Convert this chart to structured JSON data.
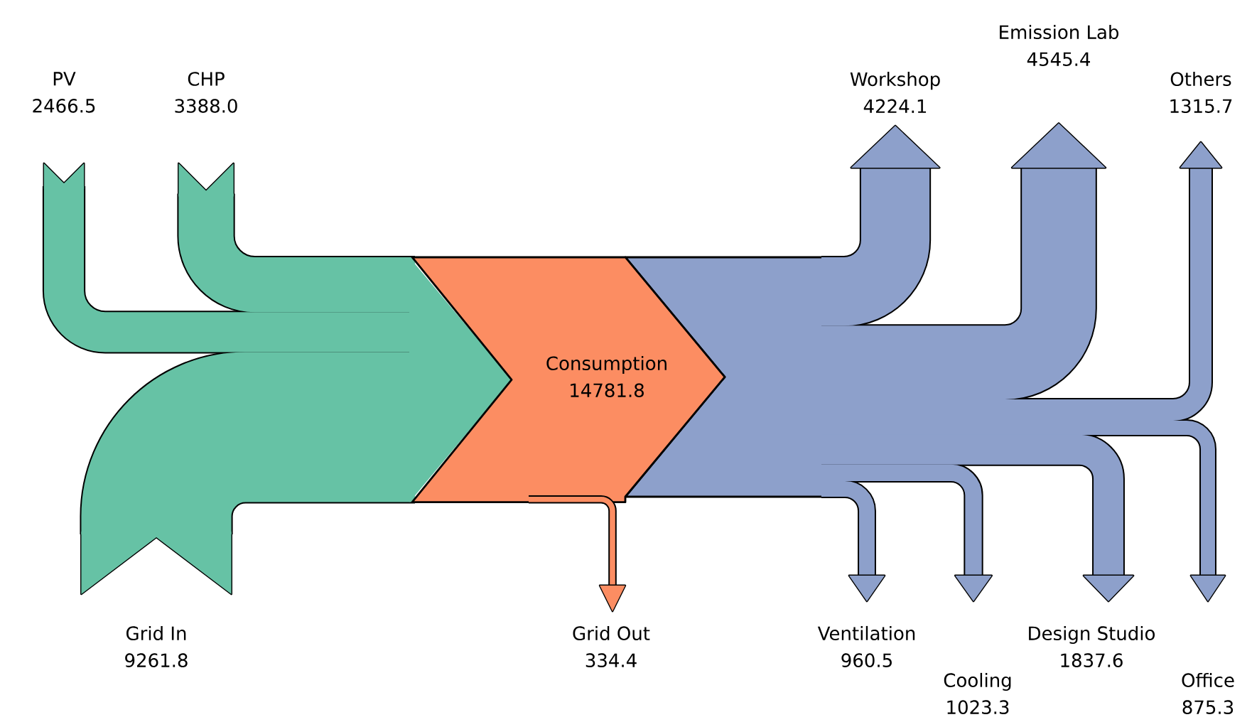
{
  "chart_data": {
    "type": "other",
    "categories": [
      "PV",
      "CHP",
      "Grid In",
      "Consumption",
      "Grid Out",
      "Workshop",
      "Emission Lab",
      "Others",
      "Ventilation",
      "Cooling",
      "Design Studio",
      "Office"
    ],
    "values": [
      2466.5,
      3388.0,
      9261.8,
      14781.8,
      334.4,
      4224.1,
      4545.4,
      1315.7,
      960.5,
      1023.3,
      1837.6,
      875.3
    ],
    "value_labels": [
      "2466.5",
      "3388.0",
      "9261.8",
      "14781.8",
      "334.4",
      "4224.1",
      "4545.4",
      "1315.7",
      "960.5",
      "1023.3",
      "1837.6",
      "875.3"
    ],
    "colors": [
      "#66c2a5",
      "#66c2a5",
      "#66c2a5",
      "#fc8d62",
      "#fc8d62",
      "#8da0cb",
      "#8da0cb",
      "#8da0cb",
      "#8da0cb",
      "#8da0cb",
      "#8da0cb",
      "#8da0cb"
    ]
  }
}
